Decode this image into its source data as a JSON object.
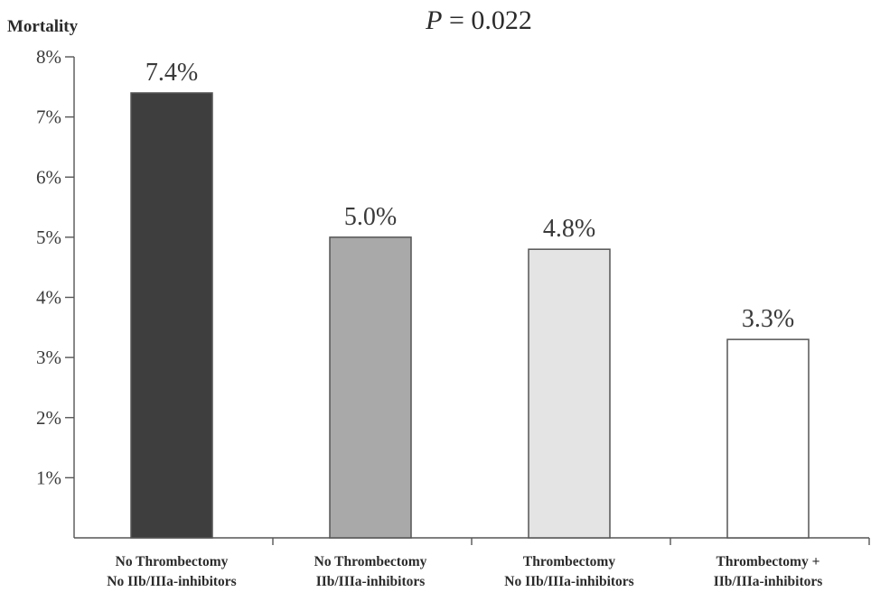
{
  "chart_data": {
    "type": "bar",
    "ylabel": "Mortality",
    "annotation": {
      "p_symbol": "P",
      "p_rest": " = 0.022"
    },
    "ylim": [
      0,
      8
    ],
    "y_ticks": [
      "1%",
      "2%",
      "3%",
      "4%",
      "5%",
      "6%",
      "7%",
      "8%"
    ],
    "categories": [
      [
        "No Thrombectomy",
        "No IIb/IIIa-inhibitors"
      ],
      [
        "No Thrombectomy",
        "IIb/IIIa-inhibitors"
      ],
      [
        "Thrombectomy",
        "No IIb/IIIa-inhibitors"
      ],
      [
        "Thrombectomy +",
        "IIb/IIIa-inhibitors"
      ]
    ],
    "values": [
      7.4,
      5.0,
      4.8,
      3.3
    ],
    "value_labels": [
      "7.4%",
      "5.0%",
      "4.8%",
      "3.3%"
    ],
    "bar_colors": [
      "#3e3e3e",
      "#a9a9a9",
      "#e4e4e4",
      "#ffffff"
    ],
    "grid": false,
    "legend": "none"
  }
}
